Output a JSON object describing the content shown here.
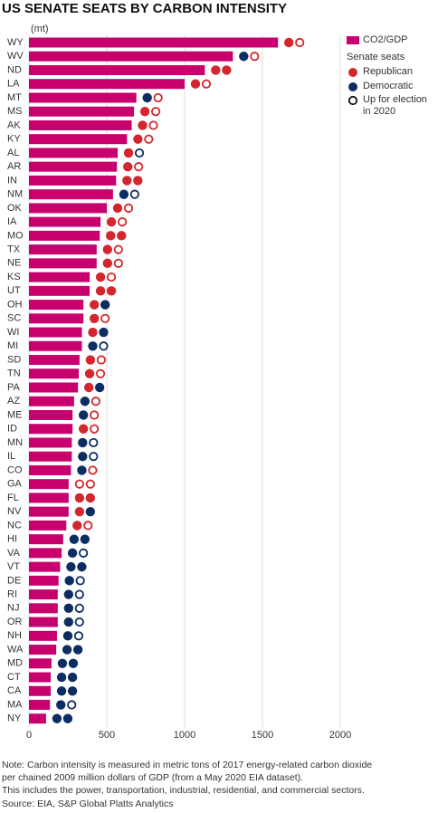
{
  "chart_data": {
    "type": "bar",
    "orientation": "horizontal",
    "title": "US SENATE SEATS BY CARBON INTENSITY",
    "unit_label": "(mt)",
    "series": [
      {
        "name": "CO2/GDP",
        "color": "#c8006e"
      }
    ],
    "categories": [
      "WY",
      "WV",
      "ND",
      "LA",
      "MT",
      "MS",
      "AK",
      "KY",
      "AL",
      "AR",
      "IN",
      "NM",
      "OK",
      "IA",
      "MO",
      "TX",
      "NE",
      "KS",
      "UT",
      "OH",
      "SC",
      "WI",
      "MI",
      "SD",
      "TN",
      "PA",
      "AZ",
      "ME",
      "ID",
      "MN",
      "IL",
      "CO",
      "GA",
      "FL",
      "NV",
      "NC",
      "HI",
      "VA",
      "VT",
      "DE",
      "RI",
      "NJ",
      "OR",
      "NH",
      "WA",
      "MD",
      "CT",
      "CA",
      "MA",
      "NY"
    ],
    "values": [
      1600,
      1310,
      1130,
      1000,
      690,
      675,
      660,
      630,
      570,
      565,
      560,
      540,
      500,
      460,
      455,
      435,
      435,
      390,
      390,
      350,
      350,
      340,
      340,
      325,
      320,
      315,
      290,
      280,
      280,
      275,
      275,
      270,
      255,
      255,
      255,
      240,
      220,
      210,
      200,
      190,
      185,
      185,
      185,
      180,
      175,
      145,
      140,
      140,
      135,
      110
    ],
    "xlim": [
      0,
      2000
    ],
    "xticks": [
      0,
      500,
      1000,
      1500,
      2000
    ],
    "grid": true,
    "seats_legend": {
      "title": "Senate seats",
      "parties": [
        {
          "name": "Republican",
          "color": "#d3262e"
        },
        {
          "name": "Democratic",
          "color": "#0c2d62"
        }
      ],
      "up": "Up for election in 2020"
    },
    "seats": [
      [
        "R",
        "R*"
      ],
      [
        "D",
        "R*"
      ],
      [
        "R",
        "R"
      ],
      [
        "R",
        "R*"
      ],
      [
        "D",
        "R*"
      ],
      [
        "R",
        "R*"
      ],
      [
        "R",
        "R*"
      ],
      [
        "R",
        "R*"
      ],
      [
        "R",
        "D*"
      ],
      [
        "R",
        "R*"
      ],
      [
        "R",
        "R"
      ],
      [
        "D",
        "D*"
      ],
      [
        "R",
        "R*"
      ],
      [
        "R",
        "R*"
      ],
      [
        "R",
        "R"
      ],
      [
        "R",
        "R*"
      ],
      [
        "R",
        "R*"
      ],
      [
        "R",
        "R*"
      ],
      [
        "R",
        "R"
      ],
      [
        "R",
        "D"
      ],
      [
        "R",
        "R*"
      ],
      [
        "R",
        "D"
      ],
      [
        "D",
        "D*"
      ],
      [
        "R",
        "R*"
      ],
      [
        "R",
        "R*"
      ],
      [
        "R",
        "D"
      ],
      [
        "D",
        "R*"
      ],
      [
        "D",
        "R*"
      ],
      [
        "R",
        "R*"
      ],
      [
        "D",
        "D*"
      ],
      [
        "D",
        "D*"
      ],
      [
        "D",
        "R*"
      ],
      [
        "R*",
        "R*"
      ],
      [
        "R",
        "R"
      ],
      [
        "R",
        "D"
      ],
      [
        "R",
        "R*"
      ],
      [
        "D",
        "D"
      ],
      [
        "D",
        "D*"
      ],
      [
        "D",
        "D"
      ],
      [
        "D",
        "D*"
      ],
      [
        "D",
        "D*"
      ],
      [
        "D",
        "D*"
      ],
      [
        "D",
        "D*"
      ],
      [
        "D",
        "D*"
      ],
      [
        "D",
        "D"
      ],
      [
        "D",
        "D"
      ],
      [
        "D",
        "D"
      ],
      [
        "D",
        "D"
      ],
      [
        "D",
        "D*"
      ],
      [
        "D",
        "D"
      ]
    ],
    "notes": [
      "Note: Carbon intensity is measured in metric tons of 2017 energy-related carbon dioxide",
      "per chained 2009 million dollars of GDP (from a May 2020 EIA dataset).",
      "This includes the power, transportation, industrial, residential, and commercial sectors."
    ],
    "source": "Source: EIA, S&P Global Platts Analytics"
  }
}
